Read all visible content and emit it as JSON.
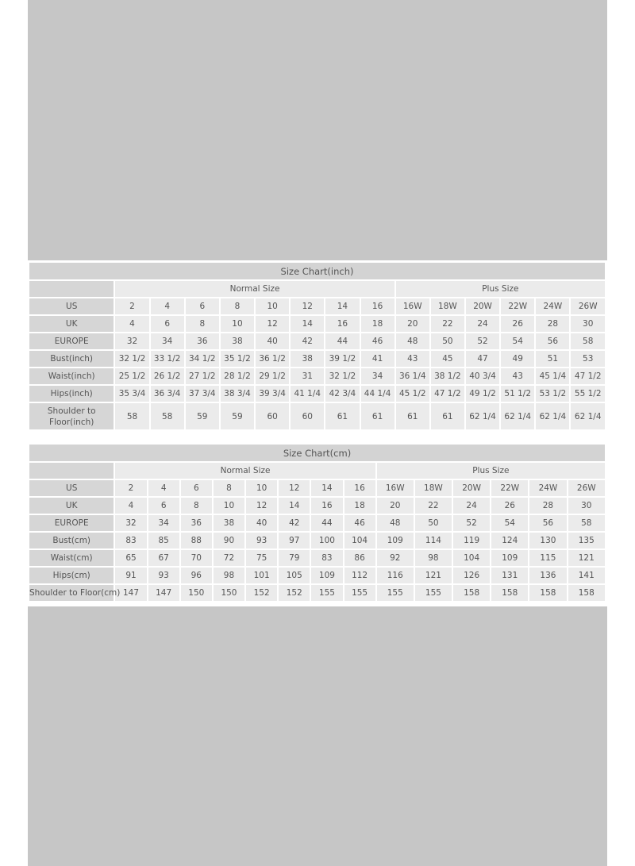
{
  "charts": [
    {
      "title": "Size Chart(inch)",
      "groups": {
        "normal": "Normal Size",
        "plus": "Plus Size"
      },
      "rows": [
        {
          "label": "US",
          "values": [
            "2",
            "4",
            "6",
            "8",
            "10",
            "12",
            "14",
            "16",
            "16W",
            "18W",
            "20W",
            "22W",
            "24W",
            "26W"
          ]
        },
        {
          "label": "UK",
          "values": [
            "4",
            "6",
            "8",
            "10",
            "12",
            "14",
            "16",
            "18",
            "20",
            "22",
            "24",
            "26",
            "28",
            "30"
          ]
        },
        {
          "label": "EUROPE",
          "values": [
            "32",
            "34",
            "36",
            "38",
            "40",
            "42",
            "44",
            "46",
            "48",
            "50",
            "52",
            "54",
            "56",
            "58"
          ]
        },
        {
          "label": "Bust(inch)",
          "values": [
            "32 1/2",
            "33 1/2",
            "34 1/2",
            "35 1/2",
            "36 1/2",
            "38",
            "39 1/2",
            "41",
            "43",
            "45",
            "47",
            "49",
            "51",
            "53"
          ]
        },
        {
          "label": "Waist(inch)",
          "values": [
            "25 1/2",
            "26 1/2",
            "27 1/2",
            "28 1/2",
            "29 1/2",
            "31",
            "32 1/2",
            "34",
            "36 1/4",
            "38 1/2",
            "40 3/4",
            "43",
            "45 1/4",
            "47 1/2"
          ]
        },
        {
          "label": "Hips(inch)",
          "values": [
            "35 3/4",
            "36 3/4",
            "37 3/4",
            "38 3/4",
            "39 3/4",
            "41 1/4",
            "42 3/4",
            "44 1/4",
            "45 1/2",
            "47 1/2",
            "49 1/2",
            "51 1/2",
            "53 1/2",
            "55 1/2"
          ]
        },
        {
          "label": "Shoulder to Floor(inch)",
          "values": [
            "58",
            "58",
            "59",
            "59",
            "60",
            "60",
            "61",
            "61",
            "61",
            "61",
            "62 1/4",
            "62 1/4",
            "62 1/4",
            "62 1/4"
          ]
        }
      ]
    },
    {
      "title": "Size Chart(cm)",
      "groups": {
        "normal": "Normal Size",
        "plus": "Plus Size"
      },
      "rows": [
        {
          "label": "US",
          "values": [
            "2",
            "4",
            "6",
            "8",
            "10",
            "12",
            "14",
            "16",
            "16W",
            "18W",
            "20W",
            "22W",
            "24W",
            "26W"
          ]
        },
        {
          "label": "UK",
          "values": [
            "4",
            "6",
            "8",
            "10",
            "12",
            "14",
            "16",
            "18",
            "20",
            "22",
            "24",
            "26",
            "28",
            "30"
          ]
        },
        {
          "label": "EUROPE",
          "values": [
            "32",
            "34",
            "36",
            "38",
            "40",
            "42",
            "44",
            "46",
            "48",
            "50",
            "52",
            "54",
            "56",
            "58"
          ]
        },
        {
          "label": "Bust(cm)",
          "values": [
            "83",
            "85",
            "88",
            "90",
            "93",
            "97",
            "100",
            "104",
            "109",
            "114",
            "119",
            "124",
            "130",
            "135"
          ]
        },
        {
          "label": "Waist(cm)",
          "values": [
            "65",
            "67",
            "70",
            "72",
            "75",
            "79",
            "83",
            "86",
            "92",
            "98",
            "104",
            "109",
            "115",
            "121"
          ]
        },
        {
          "label": "Hips(cm)",
          "values": [
            "91",
            "93",
            "96",
            "98",
            "101",
            "105",
            "109",
            "112",
            "116",
            "121",
            "126",
            "131",
            "136",
            "141"
          ]
        },
        {
          "label": "Shoulder to Floor(cm)",
          "values": [
            "147",
            "147",
            "150",
            "150",
            "152",
            "152",
            "155",
            "155",
            "155",
            "155",
            "158",
            "158",
            "158",
            "158"
          ]
        }
      ]
    }
  ]
}
